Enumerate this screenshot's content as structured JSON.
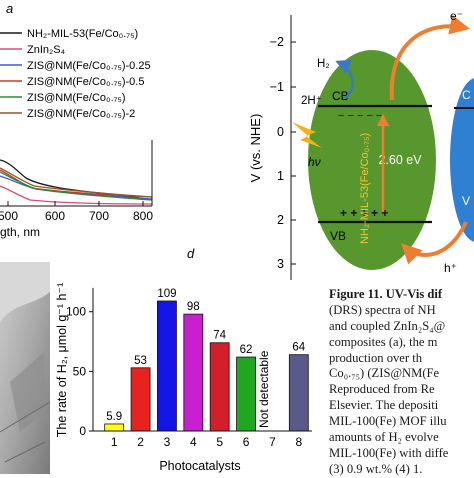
{
  "panel_labels": {
    "a": "a",
    "d": "d"
  },
  "uvvis": {
    "legend": [
      {
        "label": "NH₂-MIL-53(Fe/Co₀.₇₅)",
        "color": "#1a1a1a"
      },
      {
        "label": "ZnIn₂S₄",
        "color": "#d94b7a"
      },
      {
        "label": "ZIS@NM(Fe/Co₀.₇₅)-0.25",
        "color": "#3b5bd6"
      },
      {
        "label": "ZIS@NM(Fe/Co₀.₇₅)-0.5",
        "color": "#c83a2e"
      },
      {
        "label": "ZIS@NM(Fe/Co₀.₇₅)",
        "color": "#2a8a3a"
      },
      {
        "label": "ZIS@NM(Fe/Co₀.₇₅)-2",
        "color": "#8a5a2a"
      }
    ],
    "x_ticks": [
      "500",
      "600",
      "700",
      "800"
    ],
    "xlabel": "gth, nm"
  },
  "chart_data": {
    "type": "bar",
    "categories": [
      "1",
      "2",
      "3",
      "4",
      "5",
      "6",
      "7",
      "8"
    ],
    "values": [
      5.9,
      53,
      109,
      98,
      74,
      62,
      0,
      64
    ],
    "value_labels": [
      "5.9",
      "53",
      "109",
      "98",
      "74",
      "62",
      "",
      "64"
    ],
    "bar_colors": [
      "#ffff00",
      "#e8231f",
      "#1515e8",
      "#c81fd0",
      "#d41f2a",
      "#1fa81f",
      "#ffffff",
      "#5a5a8a"
    ],
    "annotation": "Not detectable",
    "xlabel": "Photocatalysts",
    "ylabel": "The rate of H₂, μmol g⁻¹ h⁻¹",
    "ylim": [
      0,
      120
    ],
    "y_ticks": [
      "0",
      "50",
      "100"
    ]
  },
  "band_diagram": {
    "y_ticks": [
      "−2",
      "−1",
      "0",
      "1",
      "2",
      "3"
    ],
    "ylabel": "V (vs. NHE)",
    "h2_label": "H₂",
    "proton_label": "2H⁺",
    "cb_label": "CB",
    "vb_label": "VB",
    "bandgap_label": "2.60 eV",
    "material_label": "NH₂-MIL-53(Fe/Co₀.₇₅)",
    "hv_label": "hν",
    "electron_label": "e⁻",
    "hole_label": "h⁺",
    "plus_signs": "+ + + + +",
    "minus_signs": "− − − − −",
    "right_cb": "C",
    "right_vb": "V"
  },
  "caption_lines": [
    "Figure 11. UV-Vis dif",
    "(DRS) spectra of NH",
    "and coupled ZnIn₂S₄@",
    "composites (a), the m",
    "production over th",
    "Co₀.₇₅) (ZIS@NM(Fe",
    "Reproduced from Re",
    "Elsevier. The depositi",
    "MIL-100(Fe) MOF illu",
    "amounts of H₂ evolve",
    "MIL-100(Fe) with diffe",
    "(3) 0.9 wt.% (4) 1."
  ]
}
